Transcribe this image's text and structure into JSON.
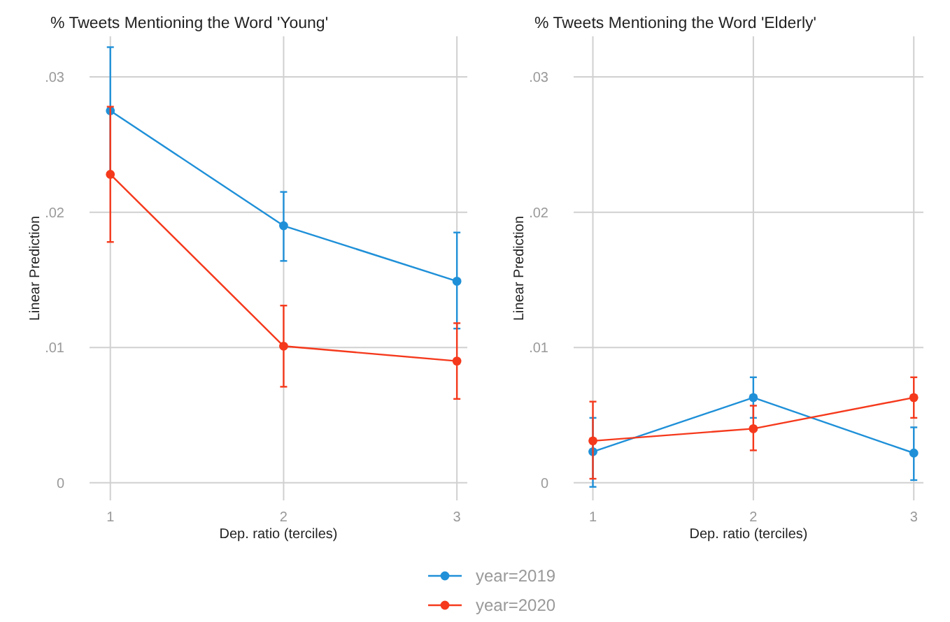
{
  "chart_data": [
    {
      "type": "line",
      "title": "% Tweets Mentioning the Word 'Young'",
      "xlabel": "Dep. ratio (terciles)",
      "ylabel": "Linear Prediction",
      "x": [
        1,
        2,
        3
      ],
      "xlim": [
        0.88,
        3.06
      ],
      "xticks": [
        1,
        2,
        3
      ],
      "ylim": [
        -0.0013,
        0.033
      ],
      "yticks": [
        {
          "value": 0,
          "label": "0"
        },
        {
          "value": 0.01,
          "label": ".01"
        },
        {
          "value": 0.02,
          "label": ".02"
        },
        {
          "value": 0.03,
          "label": ".03"
        }
      ],
      "grid": true,
      "marker": "circle",
      "legend": "bottom",
      "series": [
        {
          "name": "year=2019",
          "color": "#1f90d8",
          "values": [
            0.0275,
            0.019,
            0.0149
          ],
          "errors": [
            [
              0.0228,
              0.0322
            ],
            [
              0.0164,
              0.0215
            ],
            [
              0.0114,
              0.0185
            ]
          ]
        },
        {
          "name": "year=2020",
          "color": "#f5391c",
          "values": [
            0.0228,
            0.0101,
            0.009
          ],
          "errors": [
            [
              0.0178,
              0.0278
            ],
            [
              0.0071,
              0.0131
            ],
            [
              0.0062,
              0.0118
            ]
          ]
        }
      ]
    },
    {
      "type": "line",
      "title": "% Tweets Mentioning the Word 'Elderly'",
      "xlabel": "Dep. ratio (terciles)",
      "ylabel": "Linear Prediction",
      "x": [
        1,
        2,
        3
      ],
      "xlim": [
        0.88,
        3.06
      ],
      "xticks": [
        1,
        2,
        3
      ],
      "ylim": [
        -0.0013,
        0.033
      ],
      "yticks": [
        {
          "value": 0,
          "label": "0"
        },
        {
          "value": 0.01,
          "label": ".01"
        },
        {
          "value": 0.02,
          "label": ".02"
        },
        {
          "value": 0.03,
          "label": ".03"
        }
      ],
      "grid": true,
      "marker": "circle",
      "series": [
        {
          "color": "#1f90d8",
          "values": [
            0.0023,
            0.0063,
            0.0022
          ],
          "errors": [
            [
              -0.0003,
              0.0048
            ],
            [
              0.0048,
              0.0078
            ],
            [
              0.0002,
              0.0041
            ]
          ]
        },
        {
          "color": "#f5391c",
          "values": [
            0.0031,
            0.004,
            0.0063
          ],
          "errors": [
            [
              0.0003,
              0.006
            ],
            [
              0.0024,
              0.0057
            ],
            [
              0.0048,
              0.0078
            ]
          ]
        }
      ]
    }
  ]
}
